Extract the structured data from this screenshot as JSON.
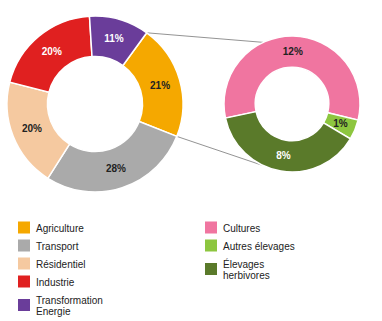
{
  "chart_data": [
    {
      "type": "donut",
      "categories": [
        "Agriculture",
        "Transport",
        "Résidentiel",
        "Industrie",
        "Transformation\nEnergie"
      ],
      "values": [
        21,
        28,
        20,
        20,
        11
      ],
      "value_labels": [
        "21%",
        "28%",
        "20%",
        "20%",
        "11%"
      ],
      "colors": [
        "#f5a800",
        "#aaaaaa",
        "#f5c9a0",
        "#e02020",
        "#6a3d9a"
      ],
      "data_labels": true,
      "legend": "bottom"
    },
    {
      "type": "donut",
      "categories": [
        "Cultures",
        "Autres élevages",
        "Élevages\nherbivores"
      ],
      "values": [
        12,
        1,
        8
      ],
      "value_labels": [
        "12%",
        "1%",
        "8%"
      ],
      "colors": [
        "#f075a0",
        "#8dc63f",
        "#5a7a2a"
      ],
      "data_labels": true,
      "legend": "bottom"
    }
  ]
}
